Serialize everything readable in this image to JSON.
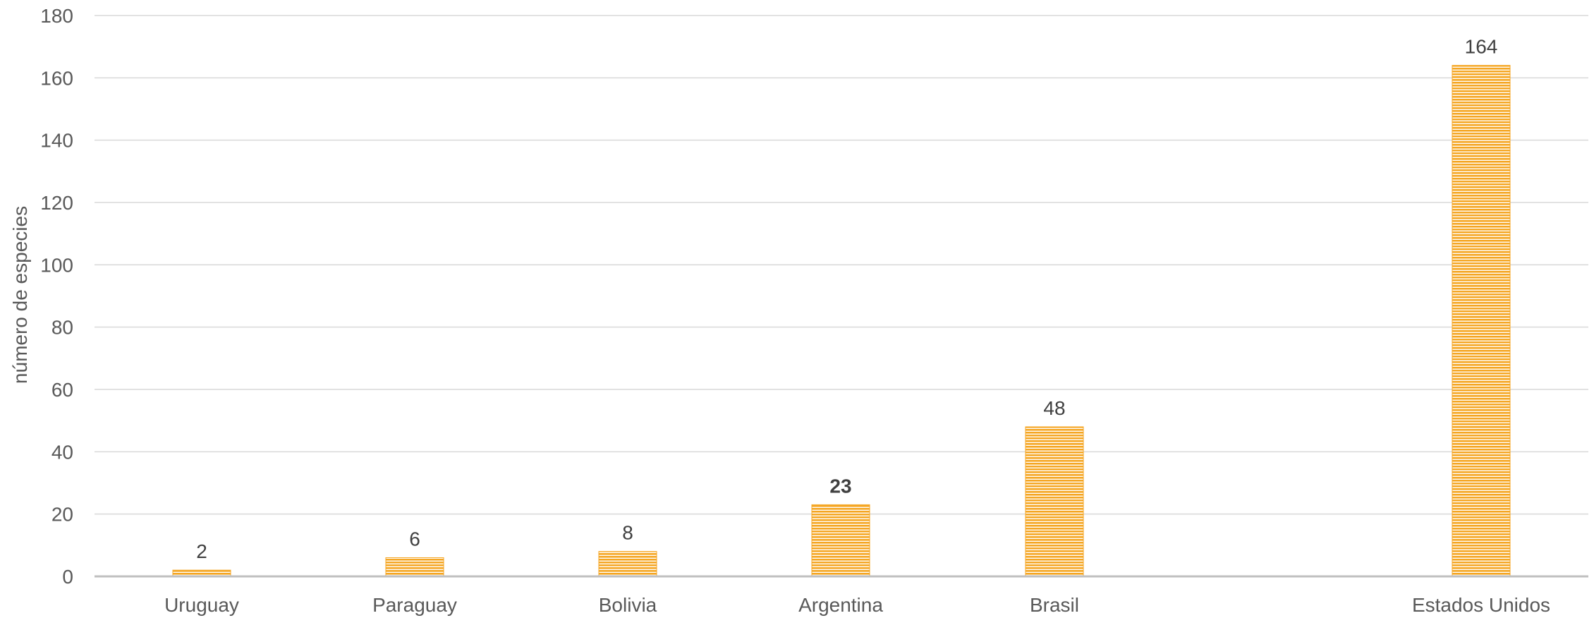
{
  "chart_data": {
    "type": "bar",
    "categories": [
      "Uruguay",
      "Paraguay",
      "Bolivia",
      "Argentina",
      "Brasil",
      "Estados Unidos"
    ],
    "values": [
      2,
      6,
      8,
      23,
      48,
      164
    ],
    "data_labels": [
      "2",
      "6",
      "8",
      "23",
      "48",
      "164"
    ],
    "emphasized_label_category": "Argentina",
    "title": "",
    "xlabel": "",
    "ylabel": "número de especies",
    "ylim": [
      0,
      180
    ],
    "yticks": [
      0,
      20,
      40,
      60,
      80,
      100,
      120,
      140,
      160,
      180
    ],
    "grid": true,
    "legend": "none",
    "bar_color": "#f5a623",
    "bar_pattern": "horizontal-lines"
  }
}
